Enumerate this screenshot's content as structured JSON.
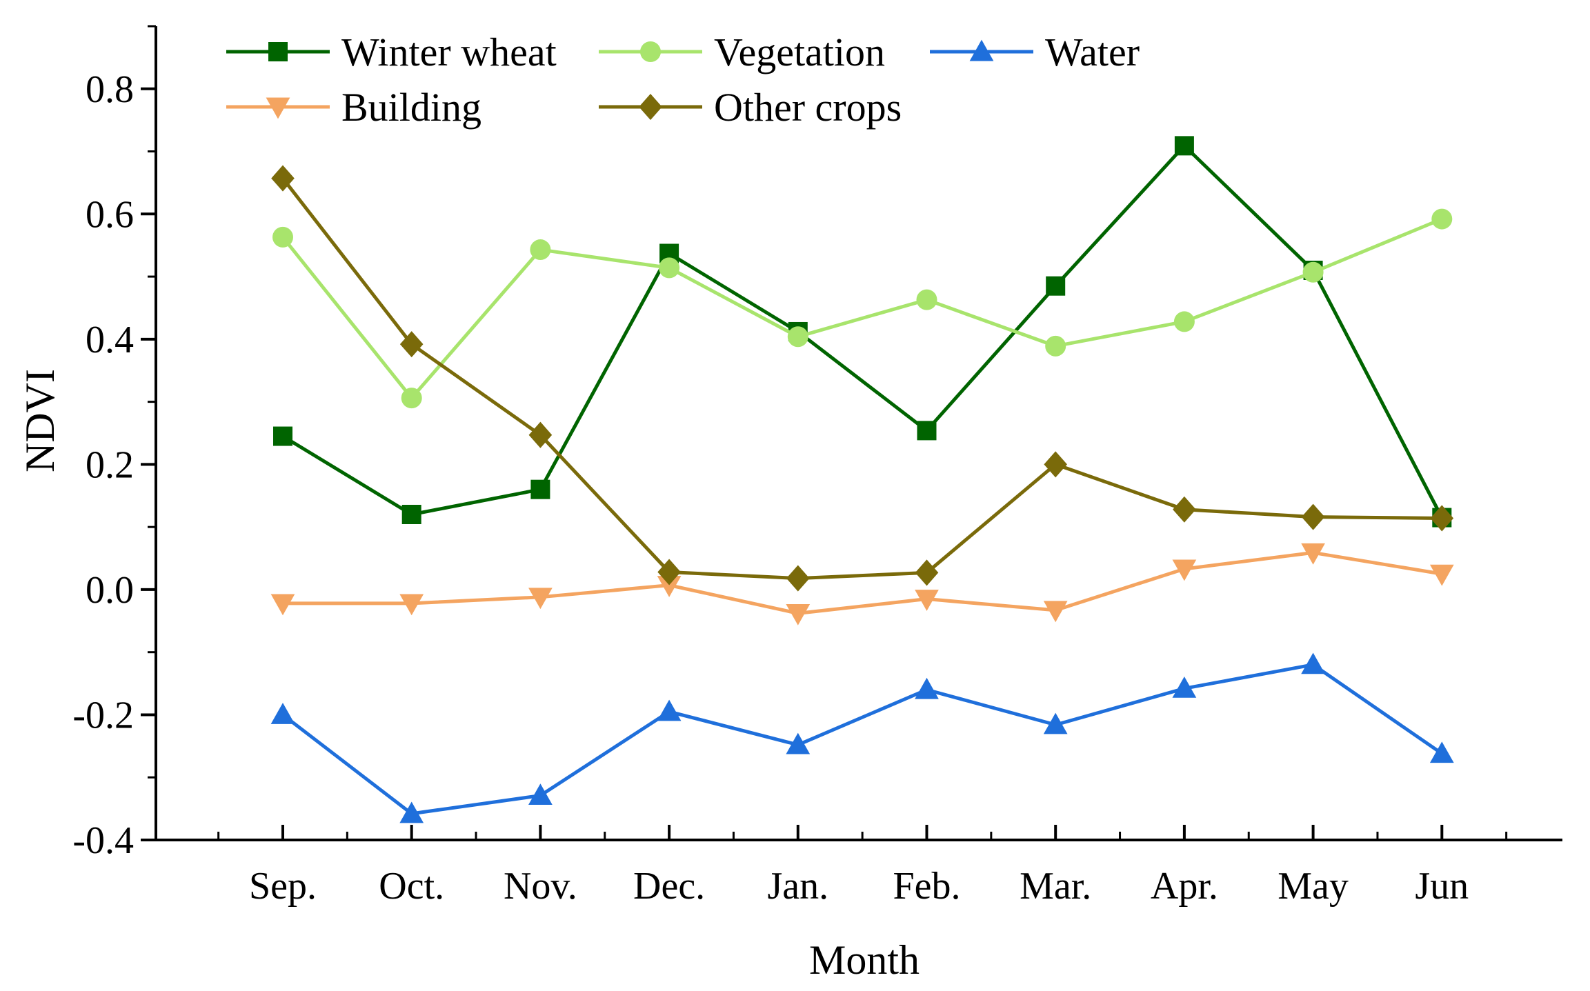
{
  "chart_data": {
    "type": "line",
    "title": "",
    "xlabel": "Month",
    "ylabel": "NDVI",
    "categories": [
      "Sep.",
      "Oct.",
      "Nov.",
      "Dec.",
      "Jan.",
      "Feb.",
      "Mar.",
      "Apr.",
      "May",
      "Jun"
    ],
    "ylim": [
      -0.4,
      0.9
    ],
    "yticks": [
      "-0.4",
      "-0.2",
      "0.0",
      "0.2",
      "0.4",
      "0.6",
      "0.8"
    ],
    "legend_position": "top-left",
    "grid": false,
    "series": [
      {
        "name": "Winter wheat",
        "color": "#006400",
        "marker": "square",
        "values": [
          0.245,
          0.12,
          0.16,
          0.537,
          0.412,
          0.254,
          0.485,
          0.709,
          0.51,
          0.115
        ]
      },
      {
        "name": "Vegetation",
        "color": "#a8e46c",
        "marker": "circle",
        "values": [
          0.563,
          0.306,
          0.543,
          0.514,
          0.404,
          0.463,
          0.389,
          0.428,
          0.507,
          0.592
        ]
      },
      {
        "name": "Water",
        "color": "#1f6fdb",
        "marker": "triangle-up",
        "values": [
          -0.2,
          -0.358,
          -0.329,
          -0.195,
          -0.248,
          -0.16,
          -0.216,
          -0.158,
          -0.12,
          -0.262
        ]
      },
      {
        "name": "Building",
        "color": "#f4a460",
        "marker": "triangle-down",
        "values": [
          -0.022,
          -0.022,
          -0.012,
          0.007,
          -0.038,
          -0.015,
          -0.033,
          0.033,
          0.059,
          0.025
        ]
      },
      {
        "name": "Other crops",
        "color": "#7a6a0a",
        "marker": "diamond",
        "values": [
          0.657,
          0.392,
          0.247,
          0.028,
          0.018,
          0.027,
          0.2,
          0.128,
          0.116,
          0.114
        ]
      }
    ]
  }
}
